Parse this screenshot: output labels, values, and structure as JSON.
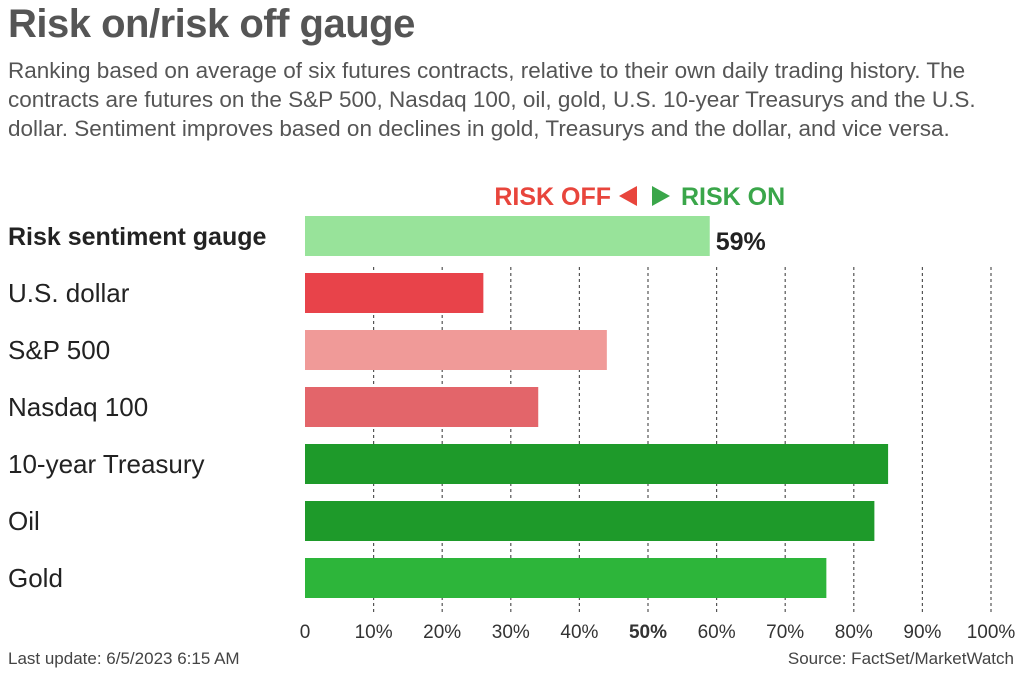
{
  "title": "Risk on/risk off gauge",
  "subtitle": "Ranking based on average of six futures contracts, relative to their own daily trading history. The contracts are futures on the S&P 500, Nasdaq 100, oil, gold, U.S. 10-year Treasurys and the U.S. dollar. Sentiment improves based on declines in gold, Treasurys and the dollar, and vice versa.",
  "legend": {
    "risk_off": "RISK OFF",
    "risk_on": "RISK ON"
  },
  "footer": {
    "last_update": "Last update: 6/5/2023 6:15 AM",
    "source": "Source: FactSet/MarketWatch"
  },
  "colors": {
    "risk_off_text": "#e8453c",
    "risk_on_text": "#3aa64a",
    "gridline": "#555555"
  },
  "chart_data": {
    "type": "bar",
    "orientation": "horizontal",
    "title": "Risk on/risk off gauge",
    "xlabel": "",
    "ylabel": "",
    "xlim": [
      0,
      100
    ],
    "x_ticks": [
      "0",
      "10%",
      "20%",
      "30%",
      "40%",
      "50%",
      "60%",
      "70%",
      "80%",
      "90%",
      "100%"
    ],
    "emphasized_tick": "50%",
    "grid": true,
    "categories": [
      "Risk sentiment gauge",
      "U.S. dollar",
      "S&P 500",
      "Nasdaq 100",
      "10-year Treasury",
      "Oil",
      "Gold"
    ],
    "values": [
      59,
      26,
      44,
      34,
      85,
      83,
      76
    ],
    "bar_colors": [
      "#98e39a",
      "#e8434a",
      "#f09a98",
      "#e3656a",
      "#1e9a2a",
      "#1e9a2a",
      "#2db53a"
    ],
    "data_labels": [
      "59%",
      "",
      "",
      "",
      "",
      "",
      ""
    ],
    "bold_categories": [
      "Risk sentiment gauge"
    ]
  }
}
